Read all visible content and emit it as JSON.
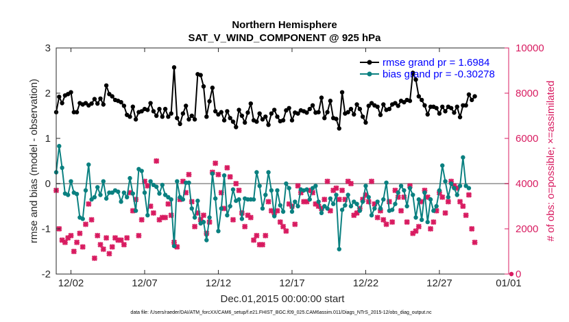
{
  "chart_data": {
    "type": "line",
    "title": "Northern Hemisphere",
    "subtitle": "SAT_V_WIND_COMPONENT @ 925 hPa",
    "xlabel": "Dec.01,2015 00:00:00 start",
    "ylabel": "rmse and bias (model - observation)",
    "y2label": "# of obs: o=possible; ×=assimilated",
    "footnote": "data file: /Users/raeder/DAI/ATM_forcXX/CAM6_setup/f.e21.FHIST_BGC.f09_025.CAM6assim.011/Diags_NTrS_2015-12/obs_diag_output.nc",
    "xlim": [
      0.5,
      31.2
    ],
    "ylim": [
      -2,
      3
    ],
    "y2lim": [
      0,
      10000
    ],
    "xticks": [
      1.5,
      6.5,
      11.5,
      16.5,
      21.5,
      26.5,
      31.5
    ],
    "xtick_labels": [
      "12/02",
      "12/07",
      "12/12",
      "12/17",
      "12/22",
      "12/27",
      "01/01"
    ],
    "yticks": [
      -2,
      -1,
      0,
      1,
      2,
      3
    ],
    "ytick_labels": [
      "-2",
      "-1",
      "0",
      "1",
      "2",
      "3"
    ],
    "y2ticks": [
      0,
      2000,
      4000,
      6000,
      8000,
      10000
    ],
    "y2tick_labels": [
      "0",
      "2000",
      "4000",
      "6000",
      "8000",
      "10000"
    ],
    "zero_line": 0,
    "legend": [
      "rmse grand pr = 1.6984",
      "bias grand pr = -0.30278"
    ],
    "legend_position": "top-right",
    "colors": {
      "rmse": "#000000",
      "bias": "#0a8080",
      "obs": "#d81b60",
      "zero": "#aaaaaa",
      "axis": "#262626"
    },
    "series": [
      {
        "name": "rmse",
        "values": [
          1.58,
          1.92,
          1.78,
          1.95,
          1.98,
          2.02,
          1.58,
          1.58,
          1.78,
          1.75,
          1.78,
          1.73,
          1.77,
          1.87,
          1.77,
          1.88,
          1.75,
          2.17,
          1.98,
          1.93,
          1.85,
          1.83,
          1.8,
          1.72,
          1.52,
          1.48,
          1.7,
          1.42,
          1.58,
          1.6,
          1.65,
          1.63,
          1.78,
          1.6,
          1.5,
          1.65,
          1.48,
          1.65,
          1.48,
          1.55,
          2.57,
          1.45,
          1.32,
          1.55,
          1.72,
          1.42,
          1.5,
          1.42,
          2.42,
          2.4,
          2.15,
          1.48,
          1.82,
          2.12,
          1.6,
          1.53,
          1.58,
          1.4,
          1.6,
          1.45,
          1.37,
          1.25,
          1.63,
          1.5,
          1.35,
          1.57,
          1.77,
          1.4,
          1.37,
          1.55,
          1.42,
          1.48,
          1.3,
          1.55,
          1.63,
          1.48,
          1.38,
          1.4,
          1.62,
          1.67,
          1.4,
          1.57,
          1.55,
          1.62,
          1.6,
          1.57,
          1.65,
          1.73,
          1.57,
          1.58,
          1.9,
          1.45,
          1.58,
          1.83,
          1.45,
          1.43,
          1.22,
          2.02,
          1.55,
          1.58,
          1.65,
          1.53,
          1.75,
          1.65,
          1.48,
          1.35,
          1.72,
          1.78,
          1.73,
          1.7,
          1.52,
          1.75,
          1.63,
          1.65,
          1.75,
          1.78,
          1.72,
          1.83,
          1.8,
          1.85,
          1.83,
          2.45,
          2.3,
          1.93,
          1.85,
          1.73,
          1.53,
          1.7,
          1.7,
          1.67,
          1.55,
          1.7,
          1.6,
          1.7,
          1.67,
          1.57,
          1.7,
          1.47,
          1.73,
          1.73,
          1.97,
          1.85,
          1.93
        ]
      },
      {
        "name": "bias",
        "values": [
          0.25,
          0.83,
          0.35,
          -0.22,
          -0.25,
          0.05,
          -0.2,
          -0.23,
          -0.75,
          -0.78,
          -0.15,
          0.42,
          -0.35,
          -0.3,
          -0.08,
          -0.25,
          0.05,
          -0.33,
          -0.2,
          -0.2,
          -0.15,
          -0.18,
          -0.4,
          -0.2,
          -0.3,
          0.12,
          -0.22,
          -0.6,
          0.32,
          0.28,
          -0.2,
          -0.7,
          0.05,
          -0.03,
          -0.07,
          -0.22,
          -0.03,
          -0.25,
          -0.3,
          -0.35,
          -1.38,
          0.05,
          -0.3,
          -0.35,
          0.02,
          0.02,
          -0.55,
          -0.75,
          -0.38,
          -0.88,
          -0.85,
          -1.25,
          -0.75,
          0.22,
          -0.33,
          -1.05,
          -0.55,
          0.18,
          -0.7,
          -0.5,
          -0.13,
          -0.38,
          -0.35,
          -0.78,
          -0.33,
          -0.35,
          -0.35,
          -0.35,
          0.25,
          -0.05,
          -0.55,
          -0.25,
          0.25,
          -0.15,
          -0.72,
          -0.15,
          -0.48,
          -0.62,
          0.0,
          -0.1,
          -0.62,
          -0.4,
          -0.5,
          -0.13,
          -0.15,
          -0.13,
          -0.35,
          -0.1,
          -0.05,
          -0.4,
          -0.65,
          -0.5,
          -0.55,
          -0.33,
          -0.45,
          -0.25,
          -1.45,
          -0.58,
          -0.48,
          -0.25,
          -0.5,
          -0.4,
          -0.45,
          -0.6,
          -0.4,
          -0.05,
          -0.3,
          -0.7,
          -0.55,
          -0.4,
          -0.55,
          -0.35,
          0.02,
          -0.6,
          -0.58,
          -0.45,
          -0.2,
          -0.05,
          -0.15,
          -0.5,
          -0.1,
          -0.25,
          -0.75,
          -0.35,
          -0.8,
          -0.2,
          -0.85,
          -0.35,
          -0.6,
          -0.5,
          -0.15,
          0.4,
          0.05,
          -0.3,
          0.0,
          -0.1,
          -0.25,
          -0.05,
          0.58,
          -0.05,
          -0.1
        ]
      }
    ],
    "obs_assimilated": [
      3700,
      2000,
      1500,
      1400,
      1600,
      1700,
      1000,
      1400,
      1800,
      1200,
      2200,
      3100,
      2400,
      700,
      1700,
      1300,
      1100,
      1600,
      900,
      1200,
      1600,
      1500,
      1500,
      1300,
      1600,
      3600,
      2800,
      3300,
      1700,
      2400,
      4100,
      3900,
      3000,
      2700,
      5000,
      2400,
      2500,
      2500,
      3100,
      2600,
      1400,
      1200,
      3300,
      4100,
      3600,
      4400,
      3200,
      2100,
      2700,
      2400,
      2600,
      1800,
      2300,
      4500,
      4900,
      4400,
      3600,
      2900,
      4700,
      4300,
      2400,
      4000,
      3700,
      2700,
      2100,
      2600,
      2500,
      1500,
      1700,
      1300,
      1300,
      1700,
      3200,
      2800,
      2700,
      2800,
      2300,
      2100,
      1900,
      3100,
      3000,
      2200,
      3900,
      3600,
      3200,
      3200,
      3700,
      3600,
      3100,
      3000,
      2900,
      3300,
      4100,
      2800,
      3700,
      3800,
      3300,
      3700,
      3300,
      4100,
      4000,
      2600,
      2700,
      2900,
      3300,
      3500,
      3200,
      4100,
      3100,
      2500,
      2800,
      2400,
      2200,
      3200,
      2300,
      3700,
      3400,
      2800,
      3400,
      2300,
      3900,
      1800,
      1900,
      2100,
      3200,
      3700,
      3400,
      2000,
      2300,
      2800,
      3600,
      3400,
      2700,
      3200,
      4100,
      3900,
      3800,
      3200,
      3000,
      2600,
      3500,
      2000,
      1400
    ]
  }
}
